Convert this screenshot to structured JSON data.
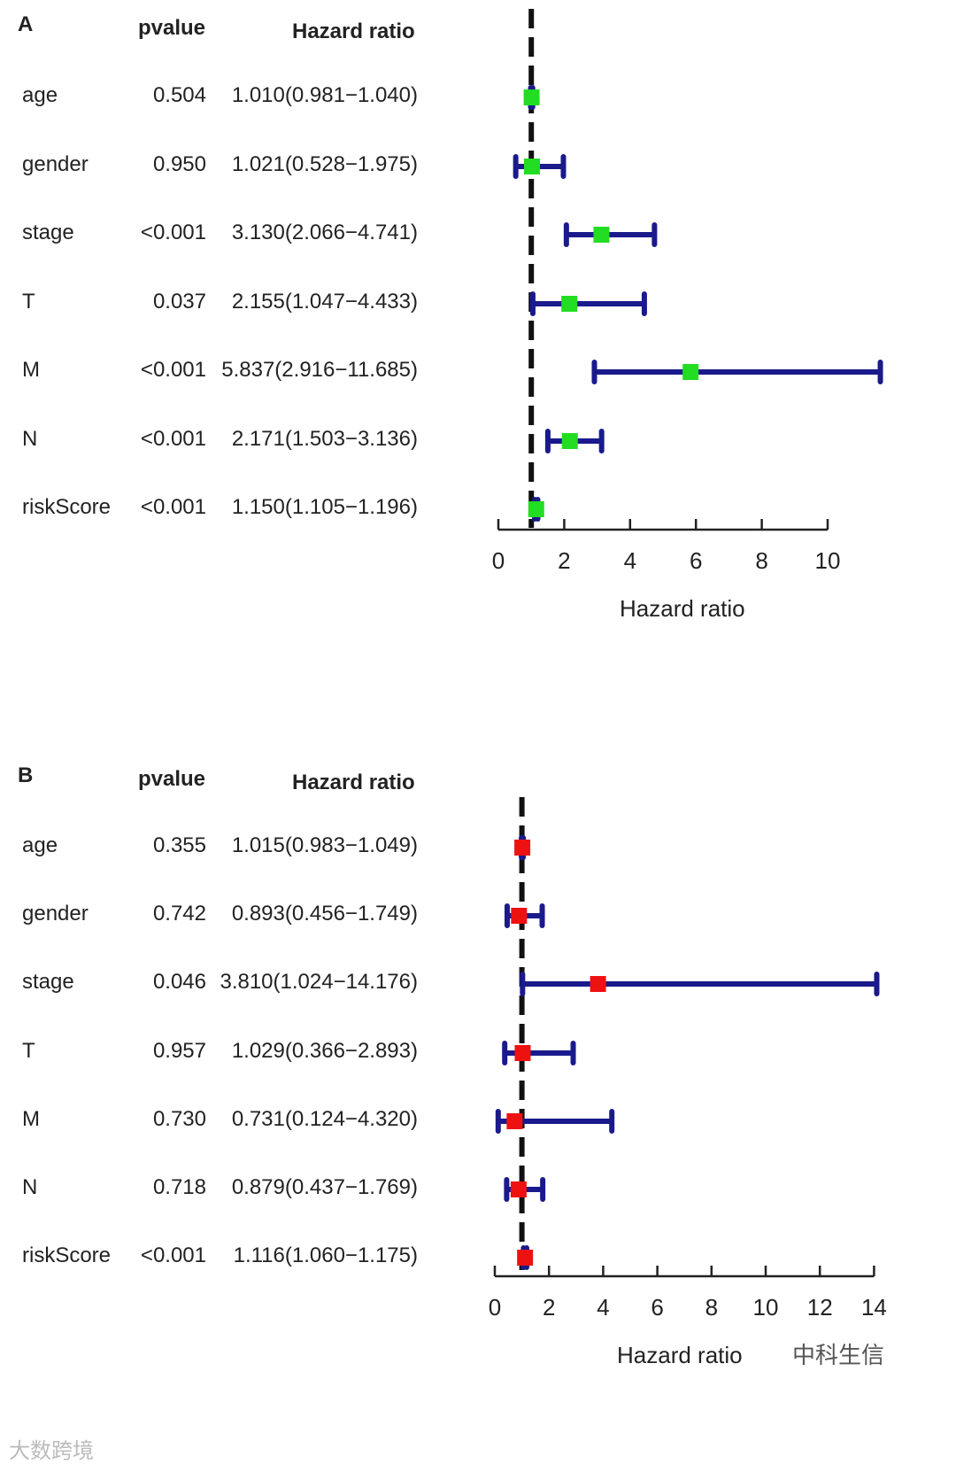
{
  "chart_data": [
    {
      "type": "forest",
      "panel": "A",
      "columns": {
        "pvalue": "pvalue",
        "hazard": "Hazard ratio"
      },
      "xlabel": "Hazard ratio",
      "xlim": [
        0,
        10
      ],
      "xticks": [
        "0",
        "2",
        "4",
        "6",
        "8",
        "10"
      ],
      "reference": 1,
      "marker_color": "#22dd22",
      "rows": [
        {
          "name": "age",
          "pvalue": "0.504",
          "hr_text": "1.010(0.981−1.040)",
          "hr": 1.01,
          "lo": 0.981,
          "hi": 1.04
        },
        {
          "name": "gender",
          "pvalue": "0.950",
          "hr_text": "1.021(0.528−1.975)",
          "hr": 1.021,
          "lo": 0.528,
          "hi": 1.975
        },
        {
          "name": "stage",
          "pvalue": "<0.001",
          "hr_text": "3.130(2.066−4.741)",
          "hr": 3.13,
          "lo": 2.066,
          "hi": 4.741
        },
        {
          "name": "T",
          "pvalue": "0.037",
          "hr_text": "2.155(1.047−4.433)",
          "hr": 2.155,
          "lo": 1.047,
          "hi": 4.433
        },
        {
          "name": "M",
          "pvalue": "<0.001",
          "hr_text": "5.837(2.916−11.685)",
          "hr": 5.837,
          "lo": 2.916,
          "hi": 11.685
        },
        {
          "name": "N",
          "pvalue": "<0.001",
          "hr_text": "2.171(1.503−3.136)",
          "hr": 2.171,
          "lo": 1.503,
          "hi": 3.136
        },
        {
          "name": "riskScore",
          "pvalue": "<0.001",
          "hr_text": "1.150(1.105−1.196)",
          "hr": 1.15,
          "lo": 1.105,
          "hi": 1.196
        }
      ]
    },
    {
      "type": "forest",
      "panel": "B",
      "columns": {
        "pvalue": "pvalue",
        "hazard": "Hazard ratio"
      },
      "xlabel": "Hazard ratio",
      "xlim": [
        0,
        14
      ],
      "xticks": [
        "0",
        "2",
        "4",
        "6",
        "8",
        "10",
        "12",
        "14"
      ],
      "reference": 1,
      "marker_color": "#ee1111",
      "rows": [
        {
          "name": "age",
          "pvalue": "0.355",
          "hr_text": "1.015(0.983−1.049)",
          "hr": 1.015,
          "lo": 0.983,
          "hi": 1.049
        },
        {
          "name": "gender",
          "pvalue": "0.742",
          "hr_text": "0.893(0.456−1.749)",
          "hr": 0.893,
          "lo": 0.456,
          "hi": 1.749
        },
        {
          "name": "stage",
          "pvalue": "0.046",
          "hr_text": "3.810(1.024−14.176)",
          "hr": 3.81,
          "lo": 1.024,
          "hi": 14.176
        },
        {
          "name": "T",
          "pvalue": "0.957",
          "hr_text": "1.029(0.366−2.893)",
          "hr": 1.029,
          "lo": 0.366,
          "hi": 2.893
        },
        {
          "name": "M",
          "pvalue": "0.730",
          "hr_text": "0.731(0.124−4.320)",
          "hr": 0.731,
          "lo": 0.124,
          "hi": 4.32
        },
        {
          "name": "N",
          "pvalue": "0.718",
          "hr_text": "0.879(0.437−1.769)",
          "hr": 0.879,
          "lo": 0.437,
          "hi": 1.769
        },
        {
          "name": "riskScore",
          "pvalue": "<0.001",
          "hr_text": "1.116(1.060−1.175)",
          "hr": 1.116,
          "lo": 1.06,
          "hi": 1.175
        }
      ]
    }
  ],
  "colors": {
    "ci_line": "#1a1a8c",
    "reference_line": "#111111",
    "axis": "#222222"
  },
  "watermark": {
    "left": "大数跨境",
    "right": "中科生信"
  }
}
